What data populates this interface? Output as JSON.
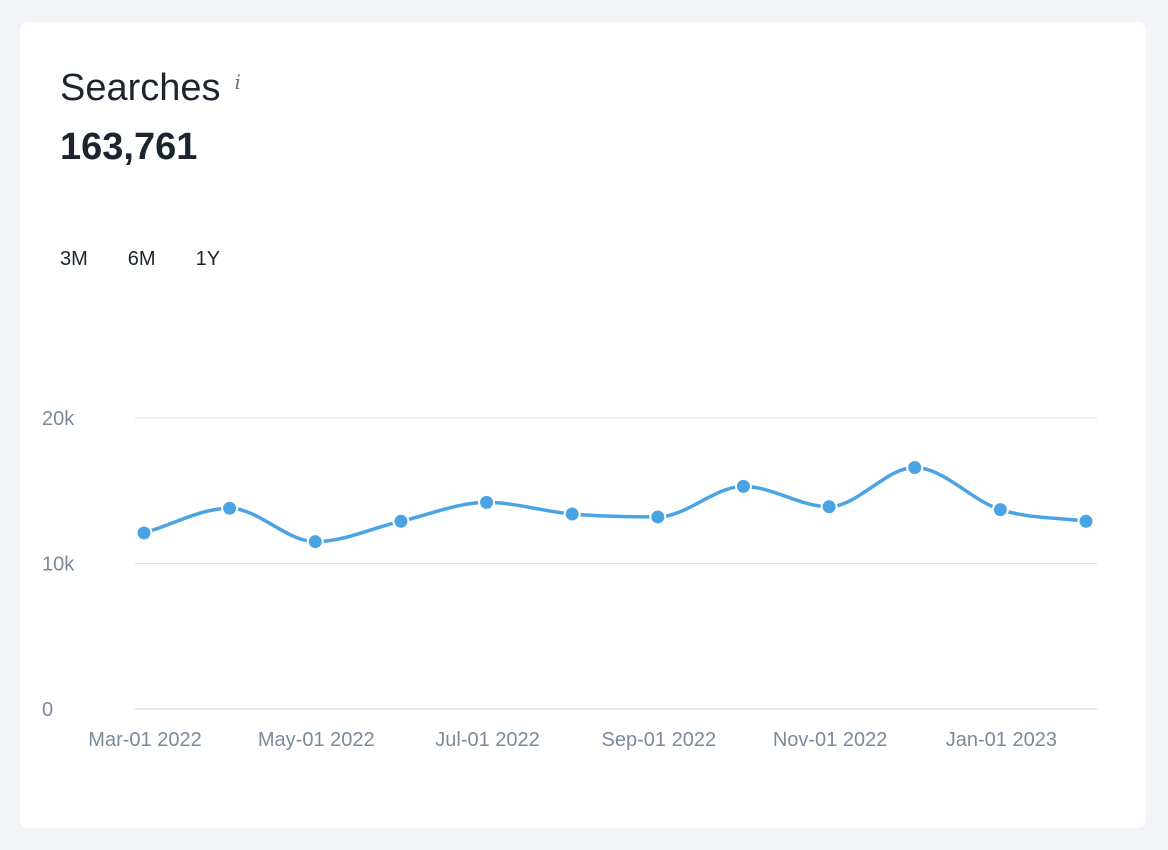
{
  "card": {
    "title": "Searches",
    "info_icon": "i",
    "total": "163,761"
  },
  "ranges": [
    {
      "label": "3M"
    },
    {
      "label": "6M"
    },
    {
      "label": "1Y"
    }
  ],
  "colors": {
    "line": "#4aa3e3",
    "grid": "#dde2e8",
    "tick_text": "#7a8a9c",
    "title_text": "#1c2430"
  },
  "chart_data": {
    "type": "line",
    "x": [
      "2022-03-01",
      "2022-04-01",
      "2022-05-01",
      "2022-06-01",
      "2022-07-01",
      "2022-08-01",
      "2022-09-01",
      "2022-10-01",
      "2022-11-01",
      "2022-12-01",
      "2023-01-01",
      "2023-02-01"
    ],
    "values": [
      12100,
      13800,
      11500,
      12900,
      14200,
      13400,
      13200,
      15300,
      13900,
      16600,
      13700,
      12900
    ],
    "y_ticks": [
      {
        "value": 20000,
        "label": "20k"
      },
      {
        "value": 10000,
        "label": "10k"
      },
      {
        "value": 0,
        "label": "0"
      }
    ],
    "x_ticks": [
      {
        "index": 0,
        "label": "Mar-01 2022"
      },
      {
        "index": 2,
        "label": "May-01 2022"
      },
      {
        "index": 4,
        "label": "Jul-01 2022"
      },
      {
        "index": 6,
        "label": "Sep-01 2022"
      },
      {
        "index": 8,
        "label": "Nov-01 2022"
      },
      {
        "index": 10,
        "label": "Jan-01 2023"
      }
    ],
    "ylim": [
      0,
      20000
    ],
    "grid": true,
    "smooth": true
  }
}
